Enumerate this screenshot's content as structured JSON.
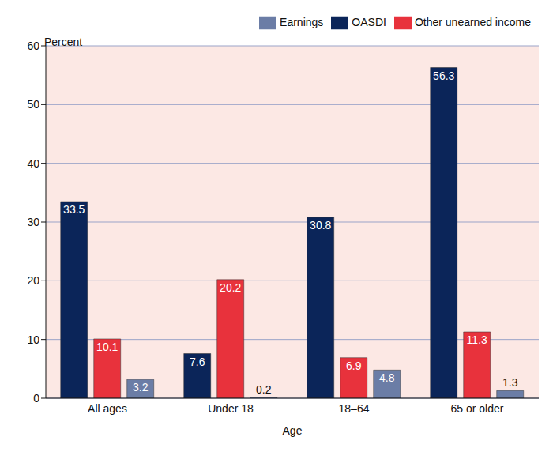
{
  "chart_data": {
    "type": "bar",
    "categories": [
      "All ages",
      "Under 18",
      "18–64",
      "65 or older"
    ],
    "series": [
      {
        "name": "OASDI",
        "color": "#0b2559",
        "values": [
          33.5,
          7.6,
          30.8,
          56.3
        ]
      },
      {
        "name": "Other unearned income",
        "color": "#e8323c",
        "values": [
          10.1,
          20.2,
          6.9,
          11.3
        ]
      },
      {
        "name": "Earnings",
        "color": "#6b7da6",
        "values": [
          3.2,
          0.2,
          4.8,
          1.3
        ]
      }
    ],
    "xlabel": "Age",
    "ylabel": "Percent",
    "ylim": [
      0,
      60
    ],
    "yticks": [
      0,
      10,
      20,
      30,
      40,
      50,
      60
    ],
    "grid": true,
    "legend": "top-right",
    "data_labels": true
  }
}
